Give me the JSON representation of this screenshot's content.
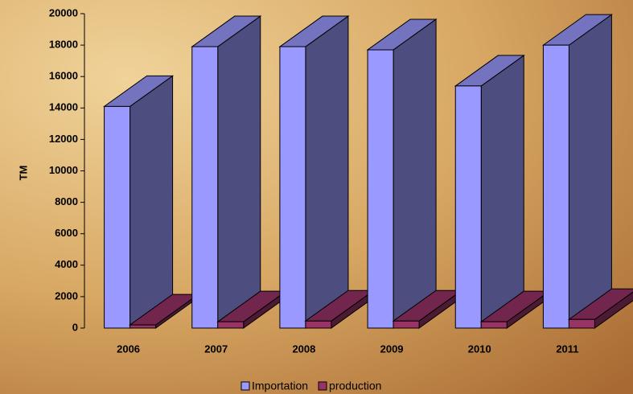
{
  "chart_data": {
    "type": "bar3d",
    "y_label": "TM",
    "categories": [
      "2006",
      "2007",
      "2008",
      "2009",
      "2010",
      "2011"
    ],
    "series": [
      {
        "name": "Importation",
        "color": "#9999ff",
        "values": [
          14100,
          17900,
          17900,
          17700,
          15400,
          18000
        ]
      },
      {
        "name": "production",
        "color": "#993366",
        "values": [
          200,
          400,
          450,
          450,
          400,
          550
        ]
      }
    ],
    "ylim": [
      0,
      20000
    ],
    "yticks": [
      0,
      2000,
      4000,
      6000,
      8000,
      10000,
      12000,
      14000,
      16000,
      18000,
      20000
    ]
  }
}
